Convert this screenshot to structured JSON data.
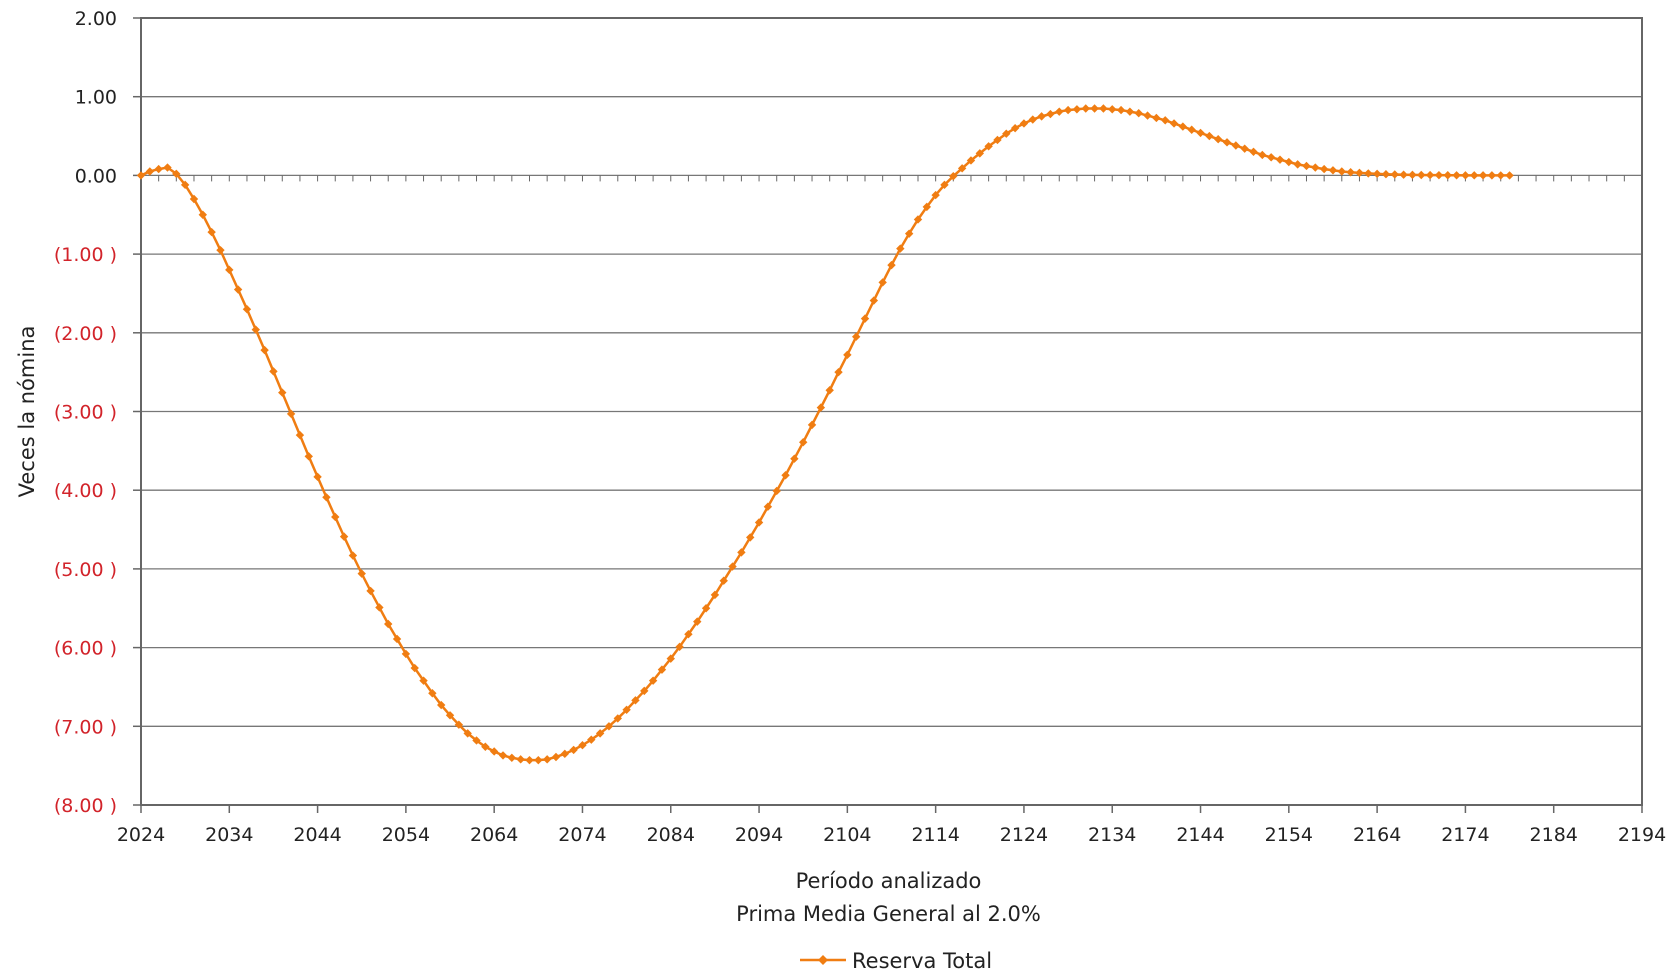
{
  "chart_data": {
    "type": "line",
    "title": "",
    "xlabel": "Período analizado",
    "xlabel2": "Prima Media General al 2.0%",
    "ylabel": "Veces la nómina",
    "xlim": [
      2024,
      2194
    ],
    "ylim": [
      -8,
      2
    ],
    "x_ticks": [
      2024,
      2034,
      2044,
      2054,
      2064,
      2074,
      2084,
      2094,
      2104,
      2114,
      2124,
      2134,
      2144,
      2154,
      2164,
      2174,
      2184,
      2194
    ],
    "y_ticks": [
      {
        "value": 2,
        "label": "2.00"
      },
      {
        "value": 1,
        "label": "1.00"
      },
      {
        "value": 0,
        "label": "0.00"
      },
      {
        "value": -1,
        "label": "(1.00 )"
      },
      {
        "value": -2,
        "label": "(2.00 )"
      },
      {
        "value": -3,
        "label": "(3.00 )"
      },
      {
        "value": -4,
        "label": "(4.00 )"
      },
      {
        "value": -5,
        "label": "(5.00 )"
      },
      {
        "value": -6,
        "label": "(6.00 )"
      },
      {
        "value": -7,
        "label": "(7.00 )"
      },
      {
        "value": -8,
        "label": "(8.00 )"
      }
    ],
    "grid": true,
    "legend_position": "bottom-center",
    "colors": {
      "series": "#F07D12",
      "positive_tick": "#222222",
      "negative_tick": "#D2232A",
      "grid": "#777777",
      "frame": "#666666"
    },
    "series": [
      {
        "name": "Reserva Total",
        "x_start": 2024,
        "x_step": 1,
        "values": [
          0.0,
          0.05,
          0.08,
          0.1,
          0.02,
          -0.12,
          -0.3,
          -0.5,
          -0.72,
          -0.95,
          -1.2,
          -1.45,
          -1.7,
          -1.96,
          -2.22,
          -2.49,
          -2.76,
          -3.03,
          -3.3,
          -3.57,
          -3.83,
          -4.09,
          -4.34,
          -4.59,
          -4.83,
          -5.06,
          -5.28,
          -5.49,
          -5.7,
          -5.89,
          -6.08,
          -6.26,
          -6.42,
          -6.58,
          -6.73,
          -6.86,
          -6.98,
          -7.09,
          -7.18,
          -7.26,
          -7.32,
          -7.37,
          -7.4,
          -7.42,
          -7.43,
          -7.43,
          -7.42,
          -7.39,
          -7.35,
          -7.3,
          -7.24,
          -7.17,
          -7.09,
          -7.0,
          -6.9,
          -6.79,
          -6.67,
          -6.55,
          -6.42,
          -6.28,
          -6.14,
          -5.99,
          -5.83,
          -5.67,
          -5.5,
          -5.33,
          -5.15,
          -4.97,
          -4.79,
          -4.6,
          -4.41,
          -4.21,
          -4.01,
          -3.81,
          -3.6,
          -3.39,
          -3.17,
          -2.95,
          -2.73,
          -2.5,
          -2.28,
          -2.05,
          -1.82,
          -1.59,
          -1.36,
          -1.14,
          -0.93,
          -0.74,
          -0.56,
          -0.4,
          -0.25,
          -0.12,
          -0.01,
          0.09,
          0.19,
          0.28,
          0.37,
          0.45,
          0.53,
          0.6,
          0.66,
          0.71,
          0.75,
          0.78,
          0.81,
          0.83,
          0.84,
          0.85,
          0.85,
          0.85,
          0.84,
          0.83,
          0.81,
          0.79,
          0.76,
          0.73,
          0.7,
          0.66,
          0.62,
          0.58,
          0.54,
          0.5,
          0.46,
          0.42,
          0.38,
          0.34,
          0.3,
          0.26,
          0.23,
          0.2,
          0.17,
          0.14,
          0.12,
          0.1,
          0.08,
          0.065,
          0.05,
          0.04,
          0.032,
          0.025,
          0.02,
          0.015,
          0.012,
          0.009,
          0.007,
          0.005,
          0.004,
          0.003,
          0.002,
          0.0015,
          0.001,
          0.0008,
          0.0005,
          0.0003,
          0.0001,
          0.0
        ]
      }
    ]
  }
}
